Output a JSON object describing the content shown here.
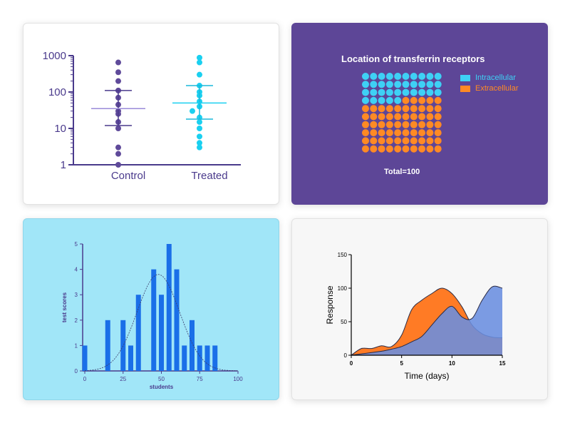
{
  "chart_data": [
    {
      "type": "scatter",
      "title": "",
      "y_scale": "log",
      "ylim": [
        1,
        1000
      ],
      "y_ticks": [
        "1",
        "10",
        "100",
        "1000"
      ],
      "categories": [
        "Control",
        "Treated"
      ],
      "series": [
        {
          "name": "Control",
          "color": "#5f4a9a",
          "values": [
            650,
            350,
            200,
            110,
            70,
            45,
            30,
            25,
            15,
            10,
            3,
            2,
            1
          ],
          "mean": 35,
          "sd_upper": 110,
          "sd_lower": 12
        },
        {
          "name": "Treated",
          "color": "#1ad0f0",
          "values": [
            880,
            650,
            300,
            150,
            100,
            80,
            55,
            40,
            30,
            20,
            15,
            10,
            6,
            4,
            3
          ],
          "mean": 50,
          "sd_upper": 150,
          "sd_lower": 18
        }
      ]
    },
    {
      "type": "parts-of-whole",
      "title": "Location of transferrin receptors",
      "series": [
        {
          "name": "Intracellular",
          "value": 35,
          "color": "#3ed1f5"
        },
        {
          "name": "Extracellular",
          "value": 65,
          "color": "#ff8a24"
        }
      ],
      "total_label": "Total=100"
    },
    {
      "type": "bar",
      "xlabel": "students",
      "ylabel": "test scores",
      "xlim": [
        0,
        100
      ],
      "ylim": [
        0,
        5
      ],
      "x_ticks": [
        "0",
        "25",
        "50",
        "75",
        "100"
      ],
      "y_ticks": [
        "0",
        "1",
        "2",
        "3",
        "4",
        "5"
      ],
      "x": [
        0,
        15,
        25,
        30,
        35,
        45,
        50,
        55,
        60,
        65,
        70,
        75,
        80,
        85
      ],
      "values": [
        1,
        2,
        2,
        1,
        3,
        4,
        3,
        5,
        4,
        1,
        2,
        1,
        1,
        1
      ],
      "curve": {
        "type": "gaussian-fit",
        "mean": 48,
        "sd": 14,
        "peak": 3.8
      }
    },
    {
      "type": "area",
      "xlabel": "Time (days)",
      "ylabel": "Response",
      "xlim": [
        0,
        15
      ],
      "ylim": [
        0,
        150
      ],
      "x_ticks": [
        "0",
        "5",
        "10",
        "15"
      ],
      "y_ticks": [
        "0",
        "50",
        "100",
        "150"
      ],
      "series": [
        {
          "name": "Orange",
          "color": "#ff7b25",
          "x": [
            0,
            1,
            2,
            3,
            4,
            5,
            6,
            7,
            8,
            9,
            10,
            11,
            12,
            13,
            14,
            15
          ],
          "values": [
            0,
            10,
            10,
            14,
            13,
            30,
            68,
            82,
            92,
            100,
            92,
            72,
            45,
            32,
            27,
            26
          ]
        },
        {
          "name": "Blue",
          "color": "#6a8ee0",
          "x": [
            0,
            1,
            2,
            3,
            4,
            5,
            6,
            7,
            8,
            9,
            10,
            11,
            12,
            13,
            14,
            15
          ],
          "values": [
            0,
            2,
            4,
            6,
            9,
            13,
            20,
            28,
            45,
            62,
            73,
            57,
            55,
            82,
            102,
            100
          ]
        }
      ]
    }
  ]
}
